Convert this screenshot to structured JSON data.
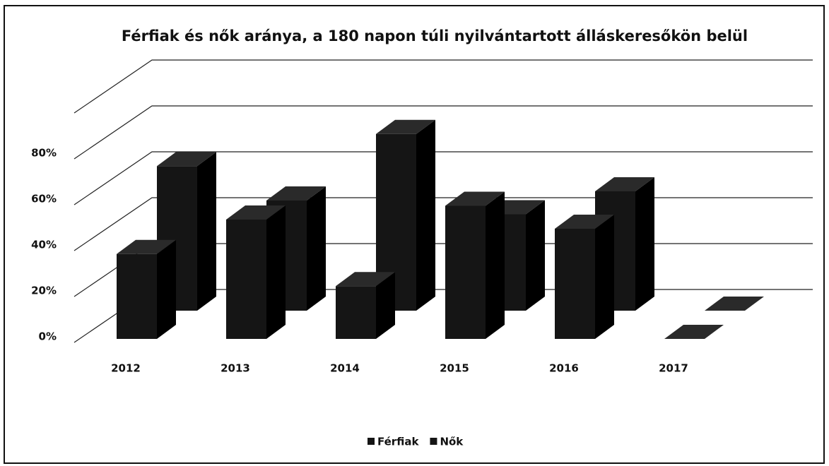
{
  "chart_data": {
    "type": "bar3d",
    "title": "Férfiak és nők aránya, a 180 napon túli nyilvántartott álláskeresőkön belül",
    "categories": [
      "2012",
      "2013",
      "2014",
      "2015",
      "2016",
      "2017"
    ],
    "series": [
      {
        "name": "Férfiak",
        "color": "#151515",
        "values": [
          37,
          52,
          23,
          58,
          48,
          0
        ]
      },
      {
        "name": "Nők",
        "color": "#151515",
        "values": [
          63,
          48,
          77,
          42,
          52,
          0
        ]
      }
    ],
    "ylim": [
      0,
      100
    ],
    "yticks": [
      {
        "value": 0,
        "label": "0%"
      },
      {
        "value": 20,
        "label": "20%"
      },
      {
        "value": 40,
        "label": "40%"
      },
      {
        "value": 60,
        "label": "60%"
      },
      {
        "value": 80,
        "label": "80%"
      }
    ],
    "grid": true,
    "legend": "bottom"
  }
}
